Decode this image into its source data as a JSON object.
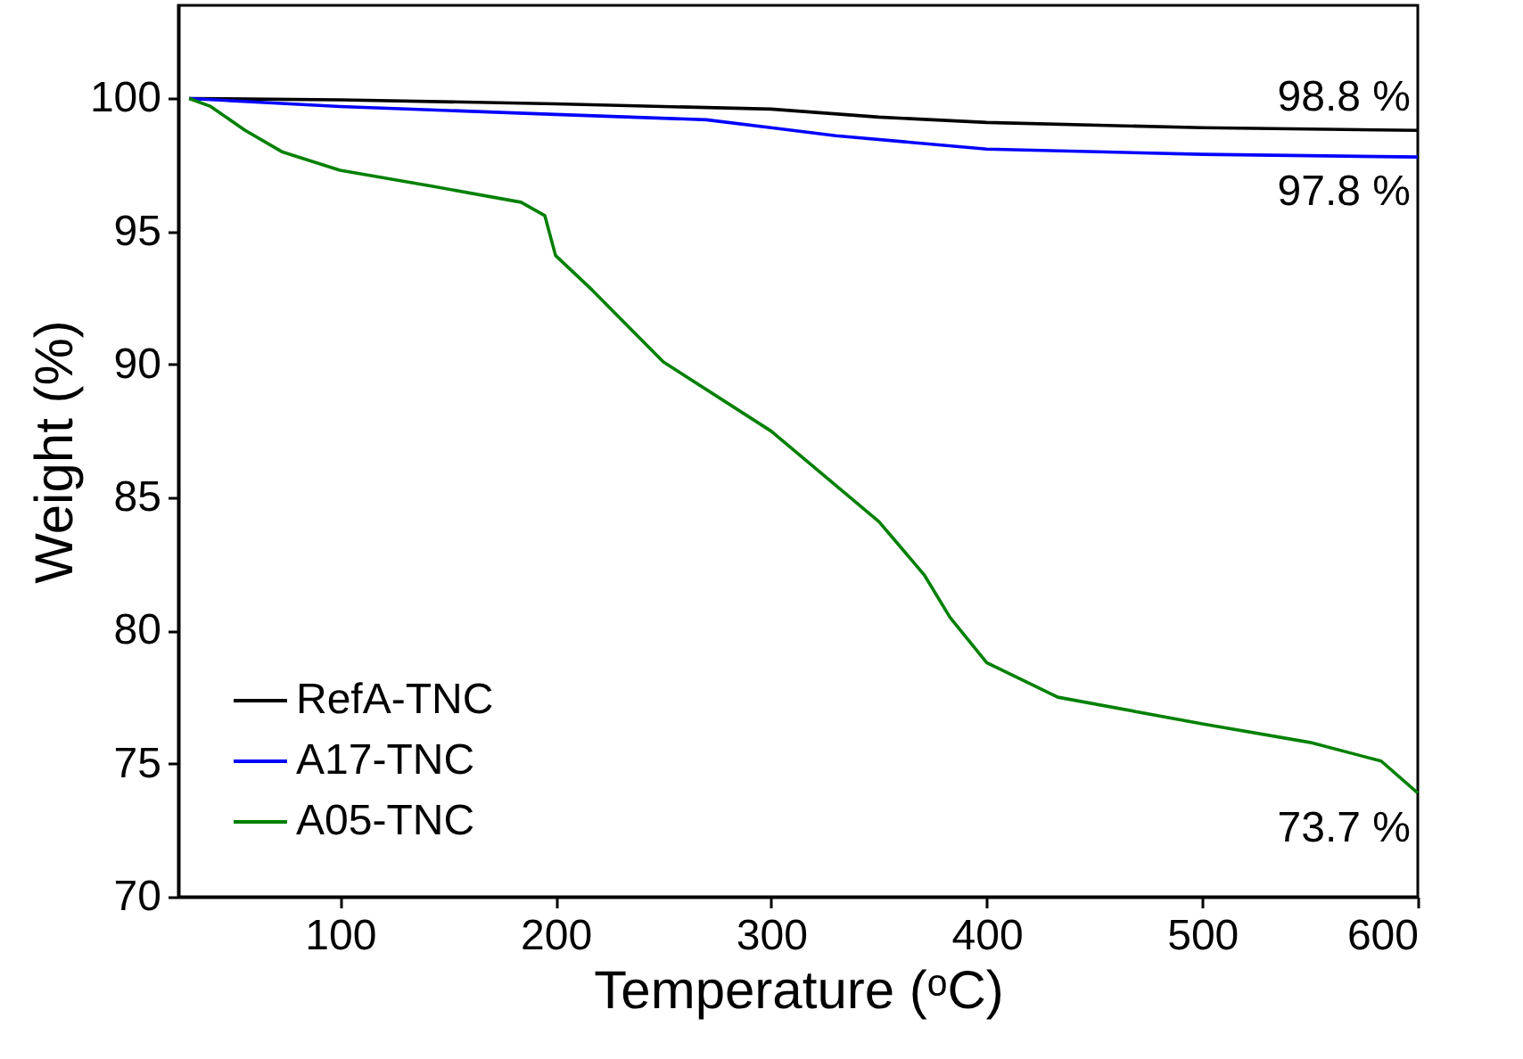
{
  "chart_data": {
    "type": "line",
    "xlabel": "Temperature (ᵒC)",
    "ylabel": "Weight (%)",
    "xlim": [
      25,
      600
    ],
    "xticks": [
      100,
      200,
      300,
      400,
      500,
      600
    ],
    "ylim": [
      70,
      103.5
    ],
    "yticks": [
      70,
      75,
      80,
      85,
      90,
      95,
      100
    ],
    "grid": false,
    "legend": "bottom left",
    "marker": "none",
    "line_style": "solid",
    "series": [
      {
        "name": "RefA-TNC",
        "color": "#000000",
        "x": [
          30,
          100,
          200,
          300,
          350,
          400,
          500,
          600
        ],
        "values": [
          100,
          99.95,
          99.8,
          99.6,
          99.3,
          99.1,
          98.9,
          98.8
        ]
      },
      {
        "name": "A17-TNC",
        "color": "#0000ff",
        "x": [
          30,
          100,
          200,
          270,
          300,
          330,
          400,
          500,
          600
        ],
        "values": [
          100,
          99.7,
          99.4,
          99.2,
          98.9,
          98.6,
          98.1,
          97.9,
          97.8
        ]
      },
      {
        "name": "A05-TNC",
        "color": "#008000",
        "x": [
          30,
          40,
          56,
          73,
          100,
          143,
          184,
          195,
          200,
          217,
          250,
          300,
          350,
          371,
          383,
          400,
          433,
          500,
          550,
          583,
          600
        ],
        "values": [
          100,
          99.7,
          98.8,
          98.0,
          97.3,
          96.7,
          96.1,
          95.6,
          94.1,
          92.8,
          90.1,
          87.5,
          84.1,
          82.1,
          80.5,
          78.8,
          77.5,
          76.5,
          75.8,
          75.1,
          73.9
        ]
      }
    ],
    "annotations": [
      "98.8 %",
      "97.8 %",
      "73.7 %"
    ]
  }
}
